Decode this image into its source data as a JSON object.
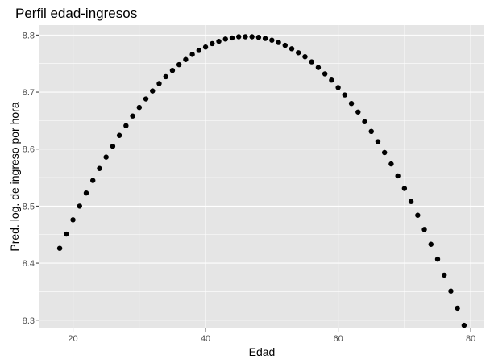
{
  "chart_data": {
    "type": "scatter",
    "title": "Perfil edad-ingresos",
    "xlabel": "Edad",
    "ylabel": "Pred. log. de ingreso por hora",
    "xlim": [
      14.95,
      82.05
    ],
    "ylim": [
      8.2855,
      8.8175
    ],
    "x_ticks": [
      20,
      40,
      60,
      80
    ],
    "x_tick_labels": [
      "20",
      "40",
      "60",
      "80"
    ],
    "y_ticks": [
      8.3,
      8.4,
      8.5,
      8.6,
      8.7,
      8.8
    ],
    "y_tick_labels": [
      "8.3",
      "8.4",
      "8.5",
      "8.6",
      "8.7",
      "8.8"
    ],
    "grid": true,
    "colors": {
      "panel": "#e5e5e5",
      "grid": "#ffffff",
      "point": "#000000"
    },
    "x": [
      18,
      19,
      20,
      21,
      22,
      23,
      24,
      25,
      26,
      27,
      28,
      29,
      30,
      31,
      32,
      33,
      34,
      35,
      36,
      37,
      38,
      39,
      40,
      41,
      42,
      43,
      44,
      45,
      46,
      47,
      48,
      49,
      50,
      51,
      52,
      53,
      54,
      55,
      56,
      57,
      58,
      59,
      60,
      61,
      62,
      63,
      64,
      65,
      66,
      67,
      68,
      69,
      70,
      71,
      72,
      73,
      74,
      75,
      76,
      77,
      78,
      79
    ],
    "y": [
      8.426,
      8.451,
      8.476,
      8.5,
      8.523,
      8.545,
      8.566,
      8.586,
      8.605,
      8.624,
      8.641,
      8.658,
      8.673,
      8.688,
      8.702,
      8.715,
      8.727,
      8.738,
      8.748,
      8.757,
      8.766,
      8.773,
      8.779,
      8.785,
      8.789,
      8.793,
      8.795,
      8.797,
      8.797,
      8.797,
      8.796,
      8.794,
      8.791,
      8.787,
      8.782,
      8.776,
      8.769,
      8.762,
      8.753,
      8.743,
      8.732,
      8.721,
      8.708,
      8.695,
      8.68,
      8.665,
      8.648,
      8.631,
      8.613,
      8.594,
      8.574,
      8.553,
      8.531,
      8.508,
      8.484,
      8.459,
      8.433,
      8.407,
      8.379,
      8.351,
      8.321,
      8.291
    ]
  }
}
